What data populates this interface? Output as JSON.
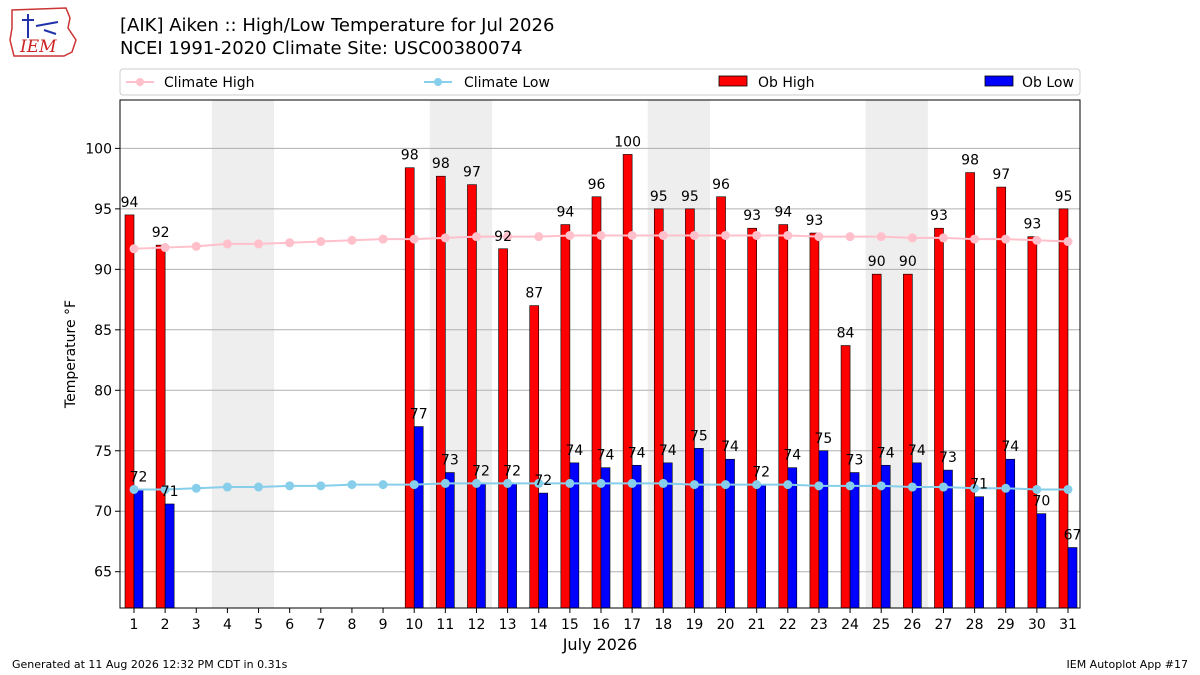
{
  "header": {
    "title_line1": "[AIK] Aiken :: High/Low Temperature for Jul 2026",
    "title_line2": "NCEI 1991-2020 Climate Site: USC00380074",
    "logo_text": "IEM"
  },
  "footer": {
    "left": "Generated at 11 Aug 2026 12:32 PM CDT in 0.31s",
    "right": "IEM Autoplot App #17"
  },
  "colors": {
    "ob_high": "#ff0000",
    "ob_low": "#0000ff",
    "climate_high": "#ffc0cb",
    "climate_low": "#87ceeb",
    "weekend_shade": "#eeeeee",
    "grid": "#b0b0b0"
  },
  "chart_data": {
    "type": "bar",
    "xlabel": "July 2026",
    "ylabel": "Temperature °F",
    "ylim": [
      62,
      104
    ],
    "yticks": [
      65,
      70,
      75,
      80,
      85,
      90,
      95,
      100
    ],
    "grid": "horizontal",
    "legend_placement": "top",
    "categories": [
      1,
      2,
      3,
      4,
      5,
      6,
      7,
      8,
      9,
      10,
      11,
      12,
      13,
      14,
      15,
      16,
      17,
      18,
      19,
      20,
      21,
      22,
      23,
      24,
      25,
      26,
      27,
      28,
      29,
      30,
      31
    ],
    "shaded_days": [
      [
        4,
        5
      ],
      [
        11,
        12
      ],
      [
        18,
        19
      ],
      [
        25,
        26
      ]
    ],
    "series": [
      {
        "name": "Ob High",
        "kind": "bar",
        "values": [
          94.5,
          92,
          null,
          null,
          null,
          null,
          null,
          null,
          null,
          98.4,
          97.7,
          97,
          91.7,
          87,
          93.7,
          96,
          99.5,
          95,
          95,
          96,
          93.4,
          93.7,
          93,
          83.7,
          89.6,
          89.6,
          93.4,
          98,
          96.8,
          92.7,
          95
        ],
        "labels": [
          "94",
          "92",
          null,
          null,
          null,
          null,
          null,
          null,
          null,
          "98",
          "98",
          "97",
          "92",
          "87",
          "94",
          "96",
          "100",
          "95",
          "95",
          "96",
          "93",
          "94",
          "93",
          "84",
          "90",
          "90",
          "93",
          "98",
          "97",
          "93",
          "95"
        ]
      },
      {
        "name": "Ob Low",
        "kind": "bar",
        "values": [
          71.8,
          70.6,
          null,
          null,
          null,
          null,
          null,
          null,
          null,
          77,
          73.2,
          72.3,
          72.3,
          71.5,
          74,
          73.6,
          73.8,
          74,
          75.2,
          74.3,
          72.2,
          73.6,
          75,
          73.2,
          73.8,
          74,
          73.4,
          71.2,
          74.3,
          69.8,
          67
        ],
        "labels": [
          "72",
          "71",
          null,
          null,
          null,
          null,
          null,
          null,
          null,
          "77",
          "73",
          "72",
          "72",
          "72",
          "74",
          "74",
          "74",
          "74",
          "75",
          "74",
          "72",
          "74",
          "75",
          "73",
          "74",
          "74",
          "73",
          "71",
          "74",
          "70",
          "67"
        ]
      },
      {
        "name": "Climate High",
        "kind": "line",
        "values": [
          91.7,
          91.8,
          91.9,
          92.1,
          92.1,
          92.2,
          92.3,
          92.4,
          92.5,
          92.5,
          92.6,
          92.7,
          92.7,
          92.7,
          92.8,
          92.8,
          92.8,
          92.8,
          92.8,
          92.8,
          92.8,
          92.8,
          92.7,
          92.7,
          92.7,
          92.6,
          92.6,
          92.5,
          92.5,
          92.4,
          92.3
        ]
      },
      {
        "name": "Climate Low",
        "kind": "line",
        "values": [
          71.8,
          71.8,
          71.9,
          72,
          72,
          72.1,
          72.1,
          72.2,
          72.2,
          72.2,
          72.3,
          72.3,
          72.3,
          72.3,
          72.3,
          72.3,
          72.3,
          72.3,
          72.2,
          72.2,
          72.2,
          72.2,
          72.1,
          72.1,
          72.1,
          72,
          72,
          71.9,
          71.9,
          71.8,
          71.8
        ]
      }
    ]
  }
}
